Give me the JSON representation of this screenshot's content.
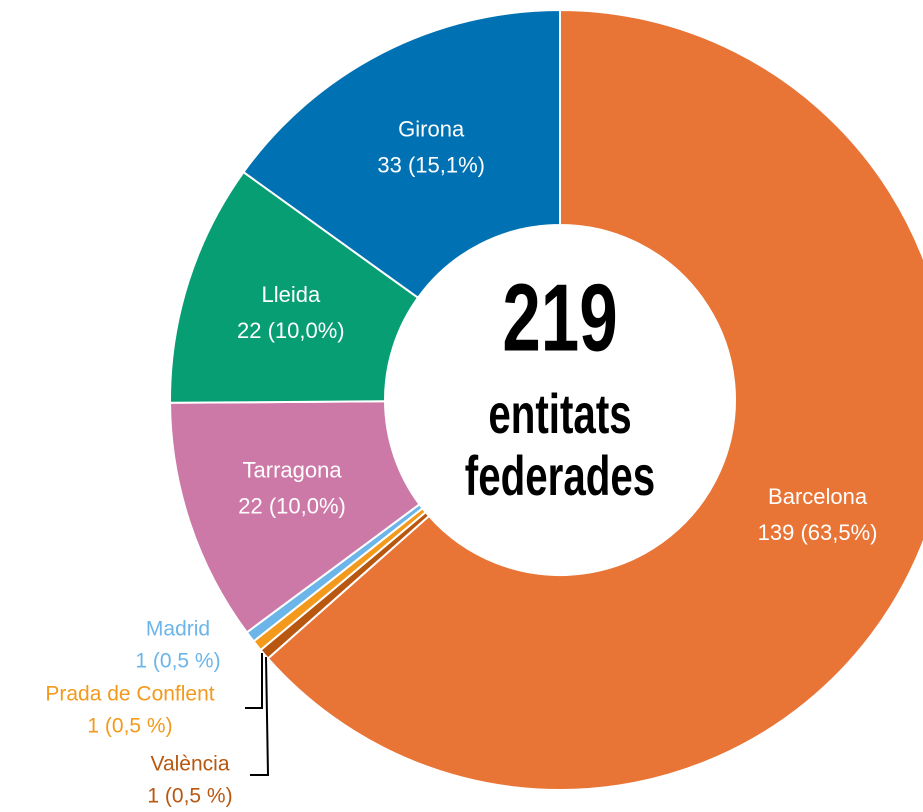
{
  "chart_data": {
    "type": "pie",
    "categories": [
      "Barcelona",
      "València",
      "Prada de Conflent",
      "Madrid",
      "Tarragona",
      "Lleida",
      "Girona"
    ],
    "values": [
      139,
      1,
      1,
      1,
      22,
      22,
      33
    ],
    "value_labels": [
      "139 (63,5%)",
      "1 (0,5 %)",
      "1 (0,5 %)",
      "1 (0,5 %)",
      "22 (10,0%)",
      "22 (10,0%)",
      "33 (15,1%)"
    ],
    "colors": [
      "#e87436",
      "#b8570f",
      "#f39a1c",
      "#6cb5e8",
      "#cd79a8",
      "#079e73",
      "#0071b3"
    ],
    "center_value": 219,
    "center_label": [
      "entitats",
      "federades"
    ]
  }
}
